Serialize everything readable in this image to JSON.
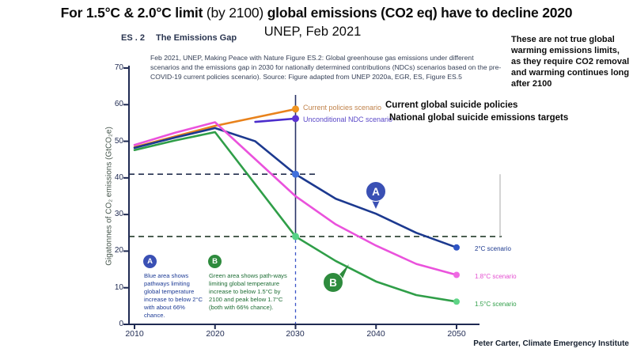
{
  "title": {
    "part1": "For 1.5°C & 2.0°C limit ",
    "part2": "(by 2100) ",
    "part3": "global emissions (CO2 eq) have to decline 2020"
  },
  "subtitle": "UNEP, Feb 2021",
  "figure_label": {
    "code": "ES . 2",
    "name": "The Emissions Gap"
  },
  "side_note": "These are not true global warming emissions limits, as they require CO2 removal and warming continues long after 2100",
  "caption": "Feb 2021,  UNEP, Making Peace with Nature Figure ES.2: Global greenhouse gas emissions under different scenarios and the emissions gap in 2030  for nationally determined contributions (NDCs) scenarios based on the pre-COVID-19 current policies scenario). Source: Figure adapted from UNEP 2020a,  EGR, ES, Figure ES.5",
  "legend": {
    "rows": [
      {
        "scenario": "Current policies scenario",
        "annotation": "Current global suicide policies",
        "color": "#c0824a"
      },
      {
        "scenario": "Unconditional NDC scenario",
        "annotation": "National global suicide emissions targets",
        "color": "#5a48c8"
      }
    ]
  },
  "annotations": {
    "a": {
      "letter": "A",
      "text": "Blue area shows pathways limiting global temperature increase to below 2°C with about 66% chance.",
      "balloon_color": "#3a50b4",
      "text_color": "#1e3c96"
    },
    "b": {
      "letter": "B",
      "text": "Green area shows path-ways limiting global temperature increase to below 1.5°C by 2100 and peak below 1.7°C (both with 66% chance).",
      "balloon_color": "#2e8b3d",
      "text_color": "#1e6e35"
    }
  },
  "credit": "Peter Carter, Climate Emergency Institute",
  "chart_data": {
    "type": "line",
    "title": "",
    "xlabel": "",
    "ylabel": "Gigatonnes of CO₂ emissions (GtCO₂e)",
    "x_range": [
      2010,
      2050
    ],
    "ylim": [
      0,
      70
    ],
    "x_ticks": [
      2010,
      2020,
      2030,
      2040,
      2050
    ],
    "y_ticks": [
      0,
      10,
      20,
      30,
      40,
      50,
      60,
      70
    ],
    "grid": false,
    "legend_position": "top-right",
    "series": [
      {
        "name": "Current policies scenario",
        "color": "#e8821c",
        "dot_color": "#f0941f",
        "points": [
          [
            2010,
            48.4
          ],
          [
            2015,
            51.3
          ],
          [
            2020,
            54.2
          ],
          [
            2030,
            58.8
          ]
        ]
      },
      {
        "name": "Unconditional NDC scenario",
        "color": "#4b2dcc",
        "dot_color": "#5c33d4",
        "points": [
          [
            2025,
            55.3
          ],
          [
            2030,
            56.2
          ]
        ]
      },
      {
        "name": "2°C scenario",
        "color": "#1c398f",
        "dot_color": "#2f55c4",
        "points": [
          [
            2010,
            48.2
          ],
          [
            2015,
            51.0
          ],
          [
            2020,
            53.6
          ],
          [
            2025,
            50.0
          ],
          [
            2030,
            41.0
          ],
          [
            2035,
            34.3
          ],
          [
            2040,
            30.2
          ],
          [
            2045,
            25.0
          ],
          [
            2050,
            21.0
          ]
        ]
      },
      {
        "name": "1.8°C scenario",
        "color": "#ea52dc",
        "dot_color": "#ef6ae2",
        "points": [
          [
            2010,
            49.0
          ],
          [
            2015,
            52.3
          ],
          [
            2020,
            55.2
          ],
          [
            2030,
            35.0
          ],
          [
            2035,
            27.3
          ],
          [
            2040,
            21.5
          ],
          [
            2045,
            16.5
          ],
          [
            2050,
            13.5
          ]
        ]
      },
      {
        "name": "1.5°C scenario",
        "color": "#2f9e48",
        "dot_color": "#5fd486",
        "points": [
          [
            2010,
            47.6
          ],
          [
            2015,
            50.2
          ],
          [
            2020,
            52.5
          ],
          [
            2030,
            24.0
          ],
          [
            2035,
            17.3
          ],
          [
            2040,
            11.7
          ],
          [
            2045,
            8.0
          ],
          [
            2050,
            6.2
          ]
        ]
      }
    ],
    "markers_2030": [
      {
        "value": 58.8,
        "color": "#f0941f"
      },
      {
        "value": 56.2,
        "color": "#5c33d4"
      },
      {
        "value": 41.0,
        "color": "#4170dc"
      },
      {
        "value": 24.0,
        "color": "#56d287"
      }
    ],
    "reference_lines": {
      "gap_top": 41,
      "gap_bottom": 24,
      "vline_year": 2030
    },
    "end_labels": [
      {
        "label": "2°C scenario",
        "color": "#1c398f"
      },
      {
        "label": "1.8°C scenario",
        "color": "#e44fd0"
      },
      {
        "label": "1.5°C scenario",
        "color": "#2f9e48"
      }
    ]
  }
}
